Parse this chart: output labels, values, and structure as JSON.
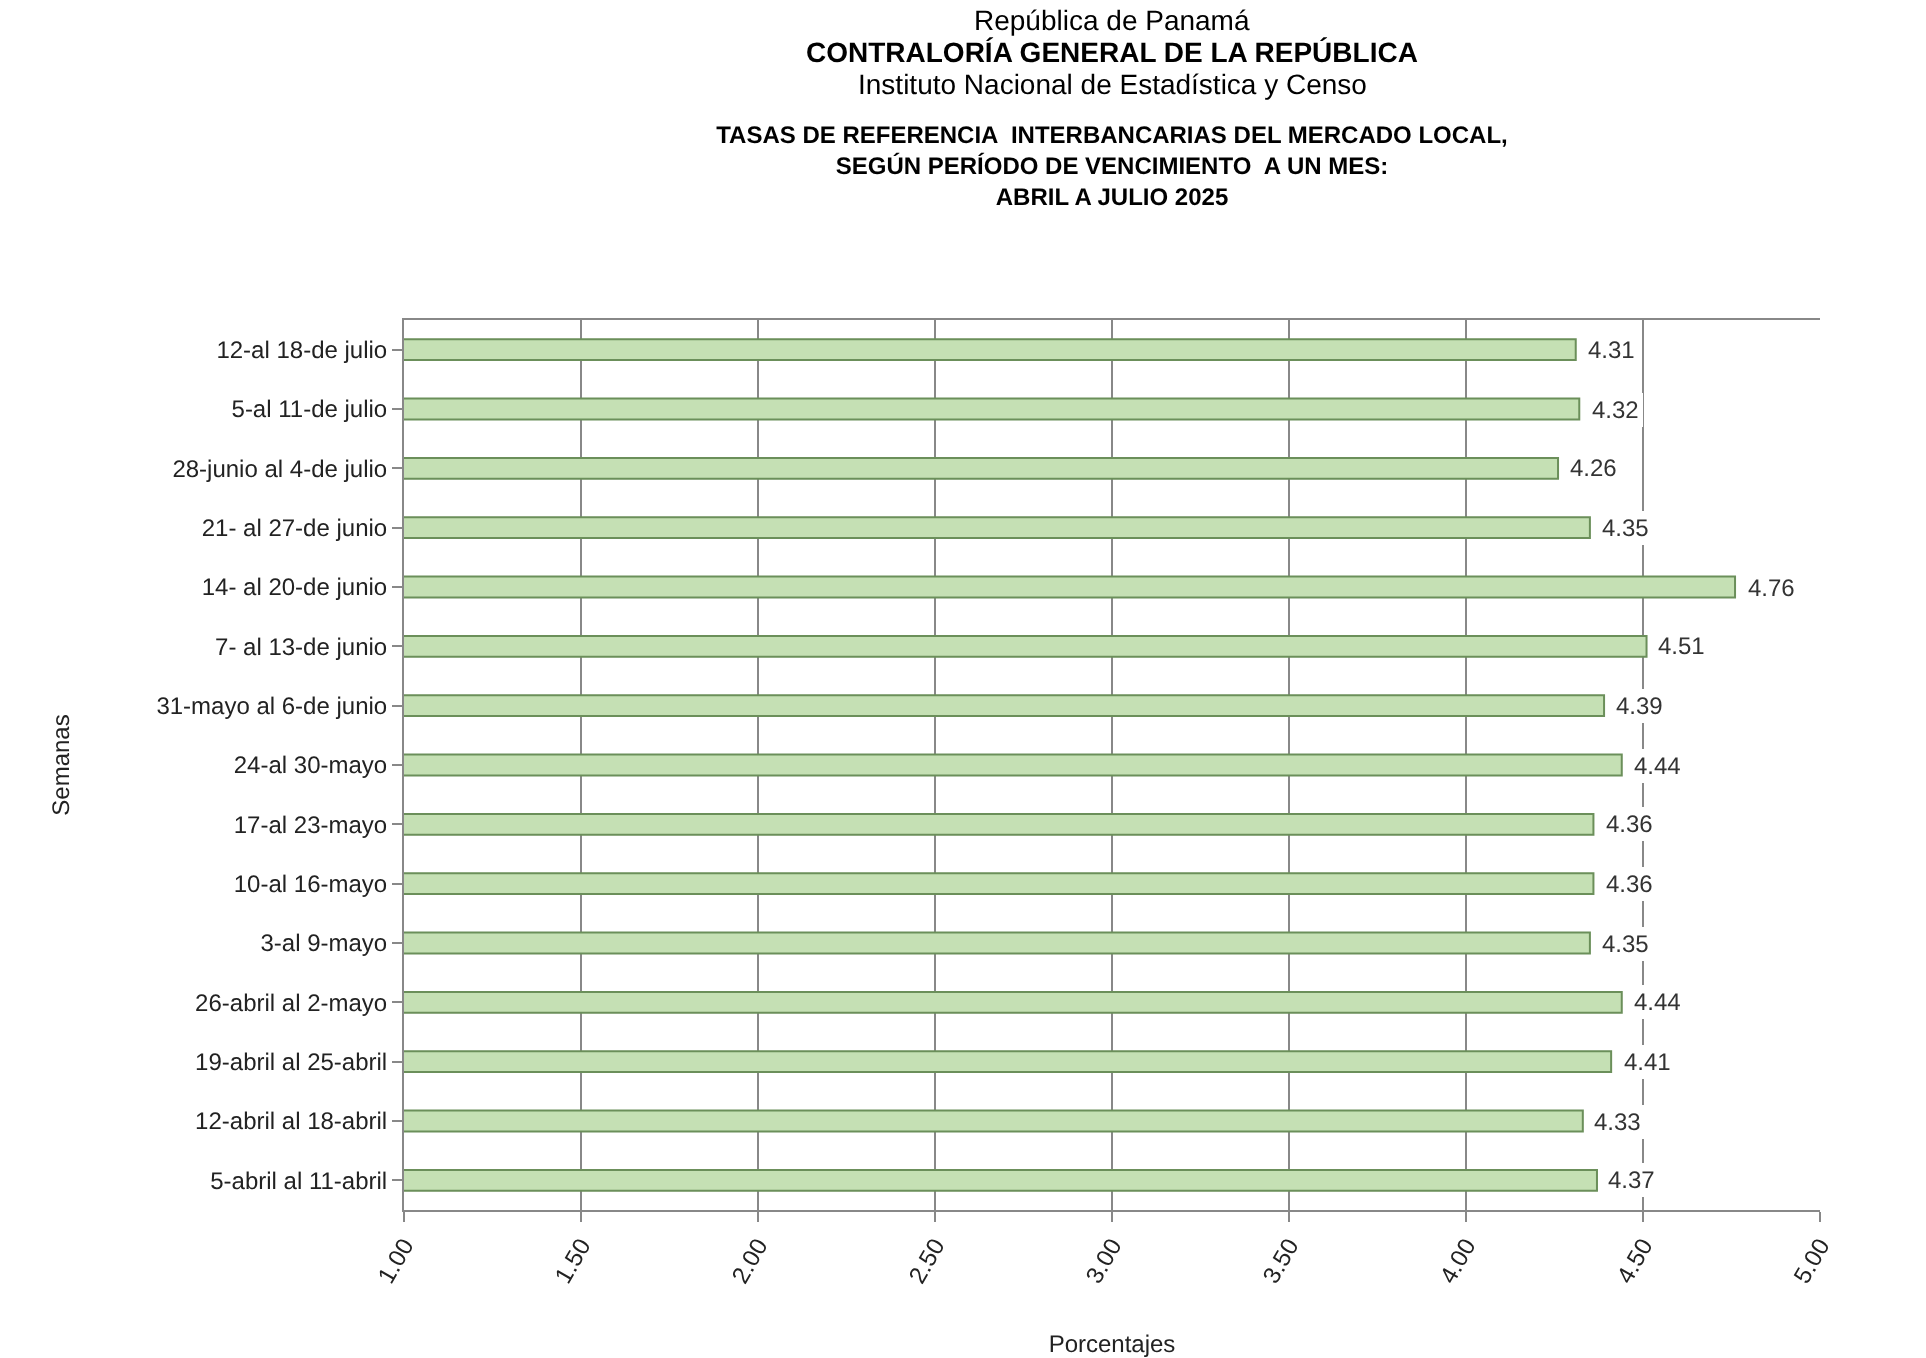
{
  "chart_data": {
    "type": "bar",
    "orientation": "horizontal",
    "title": "TASAS DE REFERENCIA  INTERBANCARIAS DEL MERCADO LOCAL,\nSEGÚN PERÍODO DE VENCIMIENTO  A UN MES:\nABRIL A JULIO 2025",
    "annotations": [
      "República de Panamá",
      "CONTRALORÍA GENERAL DE LA REPÚBLICA",
      "Instituto Nacional de Estadística y Censo"
    ],
    "xlabel": "Porcentajes",
    "ylabel": "Semanas",
    "categories": [
      "12-al 18-de julio",
      "5-al 11-de julio",
      "28-junio al 4-de julio",
      "21- al 27-de junio",
      "14- al 20-de junio",
      "7- al 13-de junio",
      "31-mayo al 6-de junio",
      "24-al 30-mayo",
      "17-al 23-mayo",
      "10-al 16-mayo",
      "3-al 9-mayo",
      "26-abril al 2-mayo",
      "19-abril al 25-abril",
      "12-abril al 18-abril",
      "5-abril al 11-abril"
    ],
    "values": [
      4.31,
      4.32,
      4.26,
      4.35,
      4.76,
      4.51,
      4.39,
      4.44,
      4.36,
      4.36,
      4.35,
      4.44,
      4.41,
      4.33,
      4.37
    ],
    "color": "#c5e0b4",
    "data_labels": true,
    "xlim": [
      1,
      5
    ],
    "xticks": [
      {
        "value": 1,
        "label": "1.00"
      },
      {
        "value": 1.5,
        "label": "1.50"
      },
      {
        "value": 2,
        "label": "2.00"
      },
      {
        "value": 2.5,
        "label": "2.50"
      },
      {
        "value": 3,
        "label": "3.00"
      },
      {
        "value": 3.5,
        "label": "3.50"
      },
      {
        "value": 4,
        "label": "4.00"
      },
      {
        "value": 4.5,
        "label": "4.50"
      },
      {
        "value": 5,
        "label": "5.00"
      }
    ],
    "grid": "x",
    "legend": false
  }
}
